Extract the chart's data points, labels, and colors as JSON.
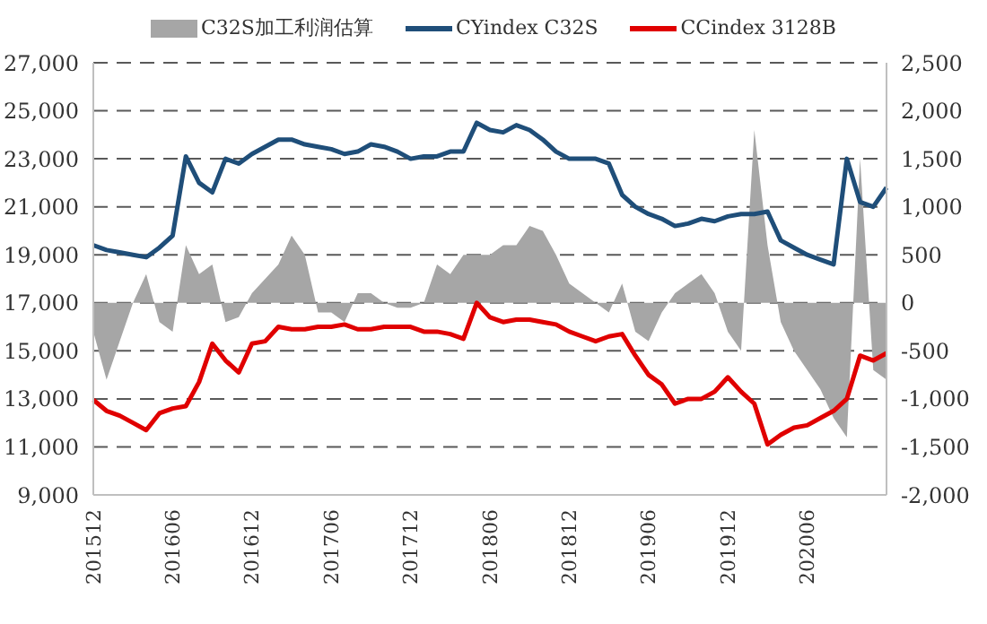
{
  "chart_data": {
    "type": "line",
    "categories": [
      "201512",
      null,
      null,
      null,
      null,
      null,
      "201606",
      null,
      null,
      null,
      null,
      null,
      "201612",
      null,
      null,
      null,
      null,
      null,
      "201706",
      null,
      null,
      null,
      null,
      null,
      "201712",
      null,
      null,
      null,
      null,
      null,
      "201806",
      null,
      null,
      null,
      null,
      null,
      "201812",
      null,
      null,
      null,
      null,
      null,
      "201906",
      null,
      null,
      null,
      null,
      null,
      "201912",
      null,
      null,
      null,
      null,
      null,
      "202006",
      null,
      null,
      null,
      null,
      null,
      null
    ],
    "series": [
      {
        "name": "C32S加工利润估算",
        "type": "area",
        "axis": "y2",
        "color": "#a6a6a6",
        "values": [
          -300,
          -800,
          -400,
          0,
          300,
          -200,
          -300,
          600,
          300,
          400,
          -200,
          -150,
          100,
          250,
          400,
          700,
          500,
          -100,
          -100,
          -200,
          100,
          100,
          0,
          -50,
          -50,
          0,
          400,
          300,
          500,
          500,
          500,
          600,
          600,
          800,
          750,
          500,
          200,
          100,
          0,
          -100,
          200,
          -300,
          -400,
          -100,
          100,
          200,
          300,
          100,
          -300,
          -500,
          1800,
          600,
          -200,
          -500,
          -700,
          -900,
          -1200,
          -1400,
          1500,
          -700,
          -800
        ]
      },
      {
        "name": "CYindex C32S",
        "color": "#1f4e79",
        "values": [
          19400,
          19200,
          19100,
          19000,
          18900,
          19300,
          19800,
          23100,
          22000,
          21600,
          23000,
          22800,
          23200,
          23500,
          23800,
          23800,
          23600,
          23500,
          23400,
          23200,
          23300,
          23600,
          23500,
          23300,
          23000,
          23100,
          23100,
          23300,
          23300,
          24500,
          24200,
          24100,
          24400,
          24200,
          23800,
          23300,
          23000,
          23000,
          23000,
          22800,
          21500,
          21000,
          20700,
          20500,
          20200,
          20300,
          20500,
          20400,
          20600,
          20700,
          20700,
          20800,
          19600,
          19300,
          19000,
          18800,
          18600,
          23000,
          21200,
          21000,
          21800
        ]
      },
      {
        "name": "CCindex 3128B",
        "color": "#e00000",
        "values": [
          12960,
          12500,
          12300,
          12000,
          11700,
          12400,
          12600,
          12700,
          13700,
          15300,
          14600,
          14100,
          15300,
          15400,
          16000,
          15900,
          15900,
          16000,
          16000,
          16100,
          15900,
          15900,
          16000,
          16000,
          16000,
          15800,
          15800,
          15700,
          15500,
          17000,
          16400,
          16200,
          16300,
          16300,
          16200,
          16100,
          15800,
          15600,
          15400,
          15600,
          15700,
          14800,
          14000,
          13600,
          12800,
          13000,
          13000,
          13300,
          13900,
          13300,
          12800,
          11100,
          11500,
          11800,
          11900,
          12200,
          12500,
          13000,
          14800,
          14600,
          14900
        ]
      }
    ],
    "ylim": [
      9000,
      27000
    ],
    "yticks": [
      {
        "value": 9000,
        "label": "9,000"
      },
      {
        "value": 11000,
        "label": "11,000"
      },
      {
        "value": 13000,
        "label": "13,000"
      },
      {
        "value": 15000,
        "label": "15,000"
      },
      {
        "value": 17000,
        "label": "17,000"
      },
      {
        "value": 19000,
        "label": "19,000"
      },
      {
        "value": 21000,
        "label": "21,000"
      },
      {
        "value": 23000,
        "label": "23,000"
      },
      {
        "value": 25000,
        "label": "25,000"
      },
      {
        "value": 27000,
        "label": "27,000"
      }
    ],
    "y2lim": [
      -2000,
      2500
    ],
    "y2ticks": [
      {
        "value": -2000,
        "label": "-2,000"
      },
      {
        "value": -1500,
        "label": "-1,500"
      },
      {
        "value": -1000,
        "label": "-1,000"
      },
      -500,
      0,
      500,
      {
        "value": 1000,
        "label": "1,000"
      },
      {
        "value": 1500,
        "label": "1,500"
      },
      {
        "value": 2000,
        "label": "2,000"
      },
      {
        "value": 2500,
        "label": "2,500"
      }
    ],
    "grid": "y",
    "legend": "top",
    "marker": "none",
    "line_style": "solid"
  }
}
